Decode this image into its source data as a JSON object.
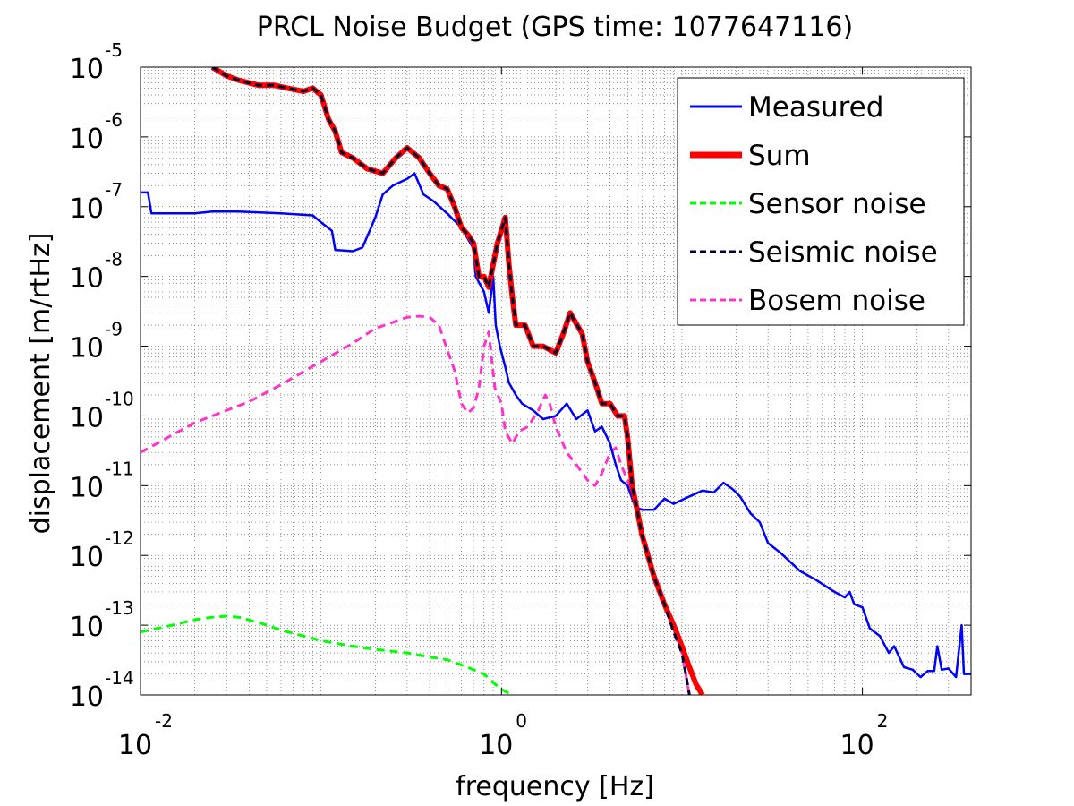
{
  "chart_data": {
    "type": "line",
    "title": "PRCL Noise Budget (GPS time: 1077647116)",
    "xlabel": "frequency [Hz]",
    "ylabel": "displacement [m/rtHz]",
    "x_scale": "log",
    "y_scale": "log",
    "xlim": [
      0.01,
      400
    ],
    "ylim": [
      1e-14,
      1e-05
    ],
    "grid": true,
    "minor_grid": true,
    "legend_position": "top-right",
    "x_ticks": [
      {
        "value": 0.01,
        "base": "10",
        "exp": "-2"
      },
      {
        "value": 1,
        "base": "10",
        "exp": "0"
      },
      {
        "value": 100,
        "base": "10",
        "exp": "2"
      }
    ],
    "y_ticks": [
      {
        "value": 1e-05,
        "base": "10",
        "exp": "-5"
      },
      {
        "value": 1e-06,
        "base": "10",
        "exp": "-6"
      },
      {
        "value": 1e-07,
        "base": "10",
        "exp": "-7"
      },
      {
        "value": 1e-08,
        "base": "10",
        "exp": "-8"
      },
      {
        "value": 1e-09,
        "base": "10",
        "exp": "-9"
      },
      {
        "value": 1e-10,
        "base": "10",
        "exp": "-10"
      },
      {
        "value": 1e-11,
        "base": "10",
        "exp": "-11"
      },
      {
        "value": 1e-12,
        "base": "10",
        "exp": "-12"
      },
      {
        "value": 1e-13,
        "base": "10",
        "exp": "-13"
      },
      {
        "value": 1e-14,
        "base": "10",
        "exp": "-14"
      }
    ],
    "series": [
      {
        "name": "Measured",
        "color": "#0000ff",
        "style": "solid",
        "points": [
          [
            0.01,
            1.6e-07
          ],
          [
            0.011,
            1.6e-07
          ],
          [
            0.0115,
            8e-08
          ],
          [
            0.02,
            8e-08
          ],
          [
            0.025,
            8.5e-08
          ],
          [
            0.035,
            8.5e-08
          ],
          [
            0.06,
            8e-08
          ],
          [
            0.09,
            7.5e-08
          ],
          [
            0.1,
            6e-08
          ],
          [
            0.115,
            4.5e-08
          ],
          [
            0.12,
            2.4e-08
          ],
          [
            0.15,
            2.3e-08
          ],
          [
            0.17,
            2.6e-08
          ],
          [
            0.2,
            7e-08
          ],
          [
            0.22,
            1.5e-07
          ],
          [
            0.25,
            2e-07
          ],
          [
            0.3,
            2.5e-07
          ],
          [
            0.33,
            3e-07
          ],
          [
            0.37,
            1.5e-07
          ],
          [
            0.42,
            1.2e-07
          ],
          [
            0.5,
            8e-08
          ],
          [
            0.6,
            5e-08
          ],
          [
            0.7,
            2.5e-08
          ],
          [
            0.72,
            1e-08
          ],
          [
            0.8,
            6e-09
          ],
          [
            0.85,
            3e-09
          ],
          [
            0.9,
            1e-08
          ],
          [
            0.93,
            2e-09
          ],
          [
            0.98,
            1e-09
          ],
          [
            1.05,
            5e-10
          ],
          [
            1.1,
            3e-10
          ],
          [
            1.2,
            2e-10
          ],
          [
            1.3,
            1.5e-10
          ],
          [
            1.5,
            1.2e-10
          ],
          [
            1.7,
            9e-11
          ],
          [
            2,
            1e-10
          ],
          [
            2.3,
            1.5e-10
          ],
          [
            2.6,
            9e-11
          ],
          [
            3,
            1.2e-10
          ],
          [
            3.3,
            6e-11
          ],
          [
            3.6,
            7e-11
          ],
          [
            4,
            4e-11
          ],
          [
            4.3,
            2e-11
          ],
          [
            4.6,
            1.2e-11
          ],
          [
            5,
            1e-11
          ],
          [
            5.5,
            5e-12
          ],
          [
            6,
            4.5e-12
          ],
          [
            7,
            4.5e-12
          ],
          [
            8,
            6.5e-12
          ],
          [
            9,
            5.5e-12
          ],
          [
            11,
            7e-12
          ],
          [
            13,
            8.5e-12
          ],
          [
            15,
            8e-12
          ],
          [
            17,
            1.1e-11
          ],
          [
            19,
            9e-12
          ],
          [
            21,
            7e-12
          ],
          [
            24,
            4e-12
          ],
          [
            27,
            3e-12
          ],
          [
            30,
            1.5e-12
          ],
          [
            35,
            1.1e-12
          ],
          [
            40,
            8e-13
          ],
          [
            45,
            6e-13
          ],
          [
            55,
            4.5e-13
          ],
          [
            70,
            3e-13
          ],
          [
            80,
            2.5e-13
          ],
          [
            85,
            3e-13
          ],
          [
            90,
            2e-13
          ],
          [
            100,
            1.8e-13
          ],
          [
            110,
            9e-14
          ],
          [
            125,
            7e-14
          ],
          [
            140,
            4e-14
          ],
          [
            150,
            5e-14
          ],
          [
            170,
            2.5e-14
          ],
          [
            190,
            2.3e-14
          ],
          [
            210,
            1.8e-14
          ],
          [
            230,
            2.2e-14
          ],
          [
            250,
            2.2e-14
          ],
          [
            260,
            5e-14
          ],
          [
            275,
            2.3e-14
          ],
          [
            300,
            2.4e-14
          ],
          [
            330,
            1.8e-14
          ],
          [
            355,
            1e-13
          ],
          [
            365,
            2e-14
          ],
          [
            400,
            2e-14
          ]
        ]
      },
      {
        "name": "Sum",
        "color": "#ff0000",
        "style": "solid",
        "points": [
          [
            0.025,
            1e-05
          ],
          [
            0.03,
            7.5e-06
          ],
          [
            0.035,
            6.5e-06
          ],
          [
            0.045,
            5.5e-06
          ],
          [
            0.055,
            5.5e-06
          ],
          [
            0.065,
            5e-06
          ],
          [
            0.08,
            4.5e-06
          ],
          [
            0.09,
            5e-06
          ],
          [
            0.1,
            4e-06
          ],
          [
            0.11,
            1.8e-06
          ],
          [
            0.12,
            1.2e-06
          ],
          [
            0.13,
            6e-07
          ],
          [
            0.15,
            5e-07
          ],
          [
            0.18,
            3.5e-07
          ],
          [
            0.22,
            3e-07
          ],
          [
            0.26,
            5e-07
          ],
          [
            0.3,
            7e-07
          ],
          [
            0.35,
            5e-07
          ],
          [
            0.4,
            3e-07
          ],
          [
            0.45,
            2e-07
          ],
          [
            0.5,
            1.8e-07
          ],
          [
            0.55,
            1e-07
          ],
          [
            0.6,
            5e-08
          ],
          [
            0.65,
            4e-08
          ],
          [
            0.7,
            3e-08
          ],
          [
            0.75,
            1e-08
          ],
          [
            0.8,
            1e-08
          ],
          [
            0.85,
            7e-09
          ],
          [
            0.9,
            1.5e-08
          ],
          [
            0.95,
            3e-08
          ],
          [
            1.05,
            7e-08
          ],
          [
            1.1,
            1.5e-08
          ],
          [
            1.15,
            5e-09
          ],
          [
            1.2,
            2e-09
          ],
          [
            1.35,
            2e-09
          ],
          [
            1.5,
            1e-09
          ],
          [
            1.7,
            1e-09
          ],
          [
            2,
            8e-10
          ],
          [
            2.2,
            1.5e-09
          ],
          [
            2.4,
            3e-09
          ],
          [
            2.8,
            1.5e-09
          ],
          [
            3,
            6e-10
          ],
          [
            3.3,
            3e-10
          ],
          [
            3.6,
            1.5e-10
          ],
          [
            4,
            1.5e-10
          ],
          [
            4.4,
            1e-10
          ],
          [
            4.8,
            1e-10
          ],
          [
            5,
            5e-11
          ],
          [
            5.3,
            1e-11
          ],
          [
            5.6,
            5e-12
          ],
          [
            6,
            2e-12
          ],
          [
            7,
            5e-13
          ],
          [
            8,
            2e-13
          ],
          [
            9,
            1e-13
          ],
          [
            10,
            5e-14
          ],
          [
            11,
            2.5e-14
          ],
          [
            12,
            1.4e-14
          ],
          [
            13,
            1e-14
          ]
        ]
      },
      {
        "name": "Sensor noise",
        "color": "#00ff00",
        "style": "dashed",
        "points": [
          [
            0.01,
            8e-14
          ],
          [
            0.015,
            1e-13
          ],
          [
            0.02,
            1.2e-13
          ],
          [
            0.025,
            1.3e-13
          ],
          [
            0.03,
            1.35e-13
          ],
          [
            0.035,
            1.3e-13
          ],
          [
            0.045,
            1.1e-13
          ],
          [
            0.06,
            8.5e-14
          ],
          [
            0.08,
            7e-14
          ],
          [
            0.1,
            6e-14
          ],
          [
            0.15,
            5e-14
          ],
          [
            0.2,
            4.5e-14
          ],
          [
            0.3,
            4e-14
          ],
          [
            0.4,
            3.5e-14
          ],
          [
            0.5,
            3.2e-14
          ],
          [
            0.6,
            2.7e-14
          ],
          [
            0.7,
            2.3e-14
          ],
          [
            0.8,
            2e-14
          ],
          [
            0.9,
            1.5e-14
          ],
          [
            1,
            1.2e-14
          ],
          [
            1.15,
            1e-14
          ]
        ]
      },
      {
        "name": "Seismic noise",
        "color": "#000033",
        "style": "dashed",
        "points": [
          [
            0.025,
            1e-05
          ],
          [
            0.03,
            7.5e-06
          ],
          [
            0.035,
            6.5e-06
          ],
          [
            0.045,
            5.5e-06
          ],
          [
            0.055,
            5.5e-06
          ],
          [
            0.065,
            5e-06
          ],
          [
            0.08,
            4.5e-06
          ],
          [
            0.09,
            5e-06
          ],
          [
            0.1,
            4e-06
          ],
          [
            0.11,
            1.8e-06
          ],
          [
            0.12,
            1.2e-06
          ],
          [
            0.13,
            6e-07
          ],
          [
            0.15,
            5e-07
          ],
          [
            0.18,
            3.5e-07
          ],
          [
            0.22,
            3e-07
          ],
          [
            0.26,
            5e-07
          ],
          [
            0.3,
            7e-07
          ],
          [
            0.35,
            5e-07
          ],
          [
            0.4,
            3e-07
          ],
          [
            0.45,
            2e-07
          ],
          [
            0.5,
            1.8e-07
          ],
          [
            0.55,
            1e-07
          ],
          [
            0.6,
            5e-08
          ],
          [
            0.65,
            4e-08
          ],
          [
            0.7,
            3e-08
          ],
          [
            0.75,
            1e-08
          ],
          [
            0.8,
            1e-08
          ],
          [
            0.85,
            7e-09
          ],
          [
            0.9,
            1.5e-08
          ],
          [
            0.95,
            3e-08
          ],
          [
            1.05,
            7e-08
          ],
          [
            1.1,
            1.5e-08
          ],
          [
            1.15,
            5e-09
          ],
          [
            1.2,
            2e-09
          ],
          [
            1.35,
            2e-09
          ],
          [
            1.5,
            1e-09
          ],
          [
            1.7,
            1e-09
          ],
          [
            2,
            8e-10
          ],
          [
            2.2,
            1.5e-09
          ],
          [
            2.4,
            3e-09
          ],
          [
            2.8,
            1.5e-09
          ],
          [
            3,
            6e-10
          ],
          [
            3.3,
            3e-10
          ],
          [
            3.6,
            1.5e-10
          ],
          [
            4,
            1.5e-10
          ],
          [
            4.4,
            1e-10
          ],
          [
            4.8,
            1e-10
          ],
          [
            5,
            5e-11
          ],
          [
            5.3,
            1e-11
          ],
          [
            5.6,
            5e-12
          ],
          [
            6,
            2e-12
          ],
          [
            7,
            5e-13
          ],
          [
            8,
            2e-13
          ],
          [
            9,
            8e-14
          ],
          [
            10,
            4e-14
          ],
          [
            10.5,
            2e-14
          ],
          [
            11,
            1e-14
          ]
        ]
      },
      {
        "name": "Bosem noise",
        "color": "#ff33cc",
        "style": "dashed",
        "points": [
          [
            0.01,
            3e-11
          ],
          [
            0.02,
            8e-11
          ],
          [
            0.04,
            1.6e-10
          ],
          [
            0.06,
            2.8e-10
          ],
          [
            0.1,
            6e-10
          ],
          [
            0.15,
            1.1e-09
          ],
          [
            0.2,
            1.8e-09
          ],
          [
            0.25,
            2.2e-09
          ],
          [
            0.3,
            2.6e-09
          ],
          [
            0.35,
            2.7e-09
          ],
          [
            0.4,
            2.6e-09
          ],
          [
            0.45,
            2e-09
          ],
          [
            0.5,
            9e-10
          ],
          [
            0.55,
            4.5e-10
          ],
          [
            0.6,
            1.5e-10
          ],
          [
            0.65,
            1.1e-10
          ],
          [
            0.7,
            1.3e-10
          ],
          [
            0.75,
            2.5e-10
          ],
          [
            0.8,
            1e-09
          ],
          [
            0.85,
            1.6e-09
          ],
          [
            0.88,
            7e-10
          ],
          [
            0.92,
            2.5e-10
          ],
          [
            1,
            1.5e-10
          ],
          [
            1.05,
            6e-11
          ],
          [
            1.15,
            4e-11
          ],
          [
            1.25,
            6e-11
          ],
          [
            1.4,
            7e-11
          ],
          [
            1.6,
            1.2e-10
          ],
          [
            1.75,
            2e-10
          ],
          [
            1.85,
            1.5e-10
          ],
          [
            2,
            7e-11
          ],
          [
            2.3,
            3e-11
          ],
          [
            2.6,
            2e-11
          ],
          [
            3,
            1.2e-11
          ],
          [
            3.3,
            1e-11
          ],
          [
            3.6,
            1.5e-11
          ],
          [
            4,
            3e-11
          ],
          [
            4.3,
            3.5e-11
          ],
          [
            4.6,
            2e-11
          ],
          [
            5,
            1.2e-11
          ],
          [
            5.5,
            5e-12
          ],
          [
            6,
            2e-12
          ],
          [
            7,
            5e-13
          ],
          [
            8,
            2e-13
          ],
          [
            9,
            8e-14
          ],
          [
            10,
            4e-14
          ],
          [
            10.5,
            2e-14
          ],
          [
            11,
            1e-14
          ]
        ]
      }
    ]
  }
}
